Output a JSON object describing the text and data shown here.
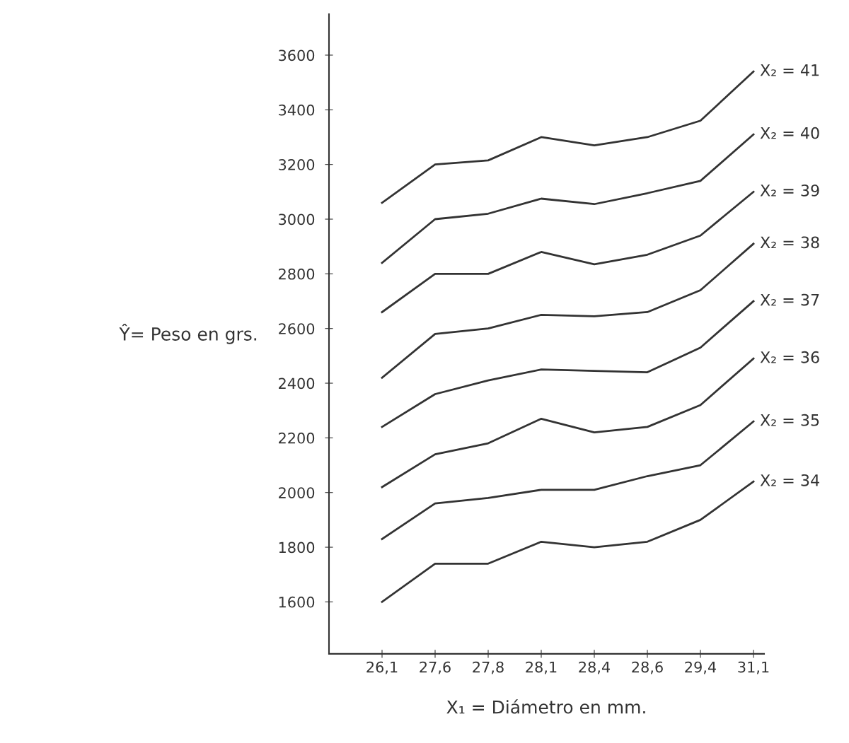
{
  "chart_data": {
    "type": "line",
    "xlabel": "X₁ = Diámetro en mm.",
    "ylabel": "Ŷ= Peso en grs.",
    "categories": [
      "26,1",
      "27,6",
      "27,8",
      "28,1",
      "28,4",
      "28,6",
      "29,4",
      "31,1"
    ],
    "ylim": [
      1410,
      3750
    ],
    "yticks": [
      1600,
      1800,
      2000,
      2200,
      2400,
      2600,
      2800,
      3000,
      3200,
      3400,
      3600
    ],
    "grid": false,
    "legend": false,
    "marker": "none",
    "line_style": "solid",
    "series": [
      {
        "name": "X₂ = 41",
        "color": "#333333",
        "values": [
          3060,
          3200,
          3215,
          3300,
          3270,
          3300,
          3360,
          3540
        ]
      },
      {
        "name": "X₂ = 40",
        "color": "#333333",
        "values": [
          2840,
          3000,
          3020,
          3075,
          3055,
          3095,
          3140,
          3310
        ]
      },
      {
        "name": "X₂ = 39",
        "color": "#333333",
        "values": [
          2660,
          2800,
          2800,
          2880,
          2835,
          2870,
          2940,
          3100
        ]
      },
      {
        "name": "X₂ = 38",
        "color": "#333333",
        "values": [
          2420,
          2580,
          2600,
          2650,
          2645,
          2660,
          2740,
          2910
        ]
      },
      {
        "name": "X₂ = 37",
        "color": "#333333",
        "values": [
          2240,
          2360,
          2410,
          2450,
          2445,
          2440,
          2530,
          2700
        ]
      },
      {
        "name": "X₂ = 36",
        "color": "#333333",
        "values": [
          2020,
          2140,
          2180,
          2270,
          2220,
          2240,
          2320,
          2490
        ]
      },
      {
        "name": "X₂ = 35",
        "color": "#333333",
        "values": [
          1830,
          1960,
          1980,
          2010,
          2010,
          2060,
          2100,
          2260
        ]
      },
      {
        "name": "X₂ = 34",
        "color": "#333333",
        "values": [
          1600,
          1740,
          1740,
          1820,
          1800,
          1820,
          1900,
          2040
        ]
      }
    ]
  }
}
